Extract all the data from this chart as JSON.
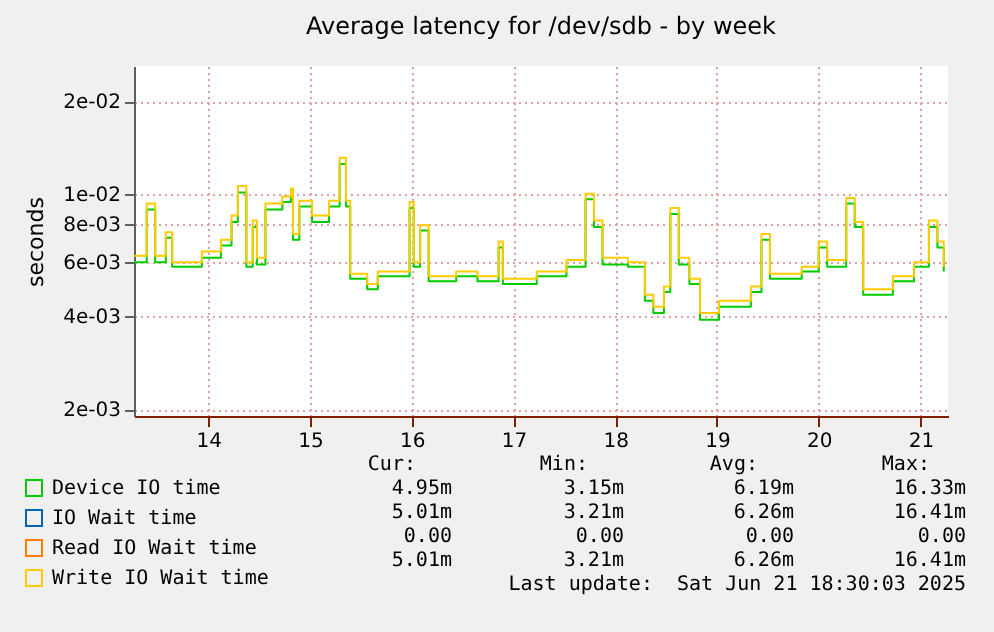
{
  "chart_data": {
    "type": "step",
    "title": "Average latency for /dev/sdb - by week",
    "ylabel": "seconds",
    "x": [
      "2025-06-13T18:30",
      "2025-06-13T21:30",
      "2025-06-13T23:30",
      "2025-06-14T02:00",
      "2025-06-14T03:30",
      "2025-06-14T10:30",
      "2025-06-14T15:00",
      "2025-06-14T17:30",
      "2025-06-14T19:00",
      "2025-06-14T21:00",
      "2025-06-14T22:30",
      "2025-06-14T23:30",
      "2025-06-15T01:30",
      "2025-06-15T05:30",
      "2025-06-15T07:30",
      "2025-06-15T08:00",
      "2025-06-15T09:30",
      "2025-06-15T12:30",
      "2025-06-15T16:30",
      "2025-06-15T19:00",
      "2025-06-15T20:30",
      "2025-06-15T21:30",
      "2025-06-16T01:30",
      "2025-06-16T04:00",
      "2025-06-16T11:30",
      "2025-06-16T12:30",
      "2025-06-16T14:00",
      "2025-06-16T16:00",
      "2025-06-16T22:30",
      "2025-06-17T03:30",
      "2025-06-17T08:30",
      "2025-06-17T09:30",
      "2025-06-17T17:30",
      "2025-06-18T00:30",
      "2025-06-18T05:00",
      "2025-06-18T07:00",
      "2025-06-18T09:00",
      "2025-06-18T15:00",
      "2025-06-18T19:00",
      "2025-06-18T21:00",
      "2025-06-18T23:30",
      "2025-06-19T01:00",
      "2025-06-19T03:00",
      "2025-06-19T05:30",
      "2025-06-19T08:00",
      "2025-06-19T12:30",
      "2025-06-19T20:00",
      "2025-06-19T22:30",
      "2025-06-20T00:30",
      "2025-06-20T08:00",
      "2025-06-20T12:00",
      "2025-06-20T14:00",
      "2025-06-20T18:30",
      "2025-06-20T20:30",
      "2025-06-20T22:30",
      "2025-06-21T05:30",
      "2025-06-21T10:30",
      "2025-06-21T14:00",
      "2025-06-21T16:00",
      "2025-06-21T17:30"
    ],
    "series": [
      {
        "name": "Device IO time",
        "color": "#00cc00",
        "values": [
          0.006,
          0.0089,
          0.006,
          0.0072,
          0.0058,
          0.0062,
          0.0068,
          0.0081,
          0.0101,
          0.0058,
          0.0078,
          0.0059,
          0.0089,
          0.0094,
          0.0099,
          0.0071,
          0.0091,
          0.0081,
          0.0091,
          0.0125,
          0.0091,
          0.0053,
          0.0049,
          0.0054,
          0.009,
          0.0058,
          0.0076,
          0.0052,
          0.0054,
          0.0052,
          0.0067,
          0.0051,
          0.0054,
          0.0058,
          0.0096,
          0.0078,
          0.0059,
          0.0058,
          0.0045,
          0.0041,
          0.0048,
          0.0086,
          0.0059,
          0.0051,
          0.0039,
          0.0043,
          0.0048,
          0.0071,
          0.0053,
          0.0056,
          0.0067,
          0.0058,
          0.0093,
          0.0078,
          0.0047,
          0.0052,
          0.0058,
          0.0078,
          0.0067,
          0.0056
        ]
      },
      {
        "name": "IO Wait time",
        "color": "#0066b3",
        "values": [
          null,
          null,
          null,
          null,
          null,
          null,
          null,
          null,
          null,
          null,
          null,
          null,
          null,
          null,
          null,
          null,
          null,
          null,
          null,
          null,
          null,
          null,
          null,
          null,
          null,
          null,
          null,
          null,
          null,
          null,
          null,
          null,
          null,
          null,
          null,
          null,
          null,
          null,
          null,
          null,
          null,
          null,
          null,
          null,
          null,
          null,
          null,
          null,
          null,
          null,
          null,
          null,
          null,
          null,
          null,
          null,
          null,
          null,
          null,
          null
        ]
      },
      {
        "name": "Read IO Wait time",
        "color": "#ff8000",
        "values": [
          null,
          null,
          null,
          null,
          null,
          null,
          null,
          null,
          null,
          null,
          null,
          null,
          null,
          null,
          null,
          null,
          null,
          null,
          null,
          null,
          null,
          null,
          null,
          null,
          null,
          null,
          null,
          null,
          null,
          null,
          null,
          null,
          null,
          null,
          null,
          null,
          null,
          null,
          null,
          null,
          null,
          null,
          null,
          null,
          null,
          null,
          null,
          null,
          null,
          null,
          null,
          null,
          null,
          null,
          null,
          null,
          null,
          null,
          null,
          null
        ]
      },
      {
        "name": "Write IO Wait time",
        "color": "#ffcc00",
        "values": [
          0.0063,
          0.0093,
          0.0063,
          0.0075,
          0.006,
          0.0065,
          0.0071,
          0.0085,
          0.0106,
          0.006,
          0.0082,
          0.0062,
          0.0093,
          0.0098,
          0.0104,
          0.0074,
          0.0095,
          0.0085,
          0.0095,
          0.0131,
          0.0095,
          0.0055,
          0.0051,
          0.0056,
          0.0094,
          0.006,
          0.0079,
          0.0054,
          0.0056,
          0.0054,
          0.007,
          0.0053,
          0.0056,
          0.0061,
          0.01,
          0.0082,
          0.0062,
          0.006,
          0.0047,
          0.0043,
          0.005,
          0.009,
          0.0062,
          0.0053,
          0.0041,
          0.0045,
          0.005,
          0.0074,
          0.0055,
          0.0058,
          0.007,
          0.0061,
          0.0097,
          0.0081,
          0.0049,
          0.0054,
          0.006,
          0.0082,
          0.007,
          0.0058
        ]
      }
    ],
    "xlim": [
      "2025-06-13T18:30",
      "2025-06-21T18:30"
    ],
    "xticks": [
      {
        "value": "2025-06-14T12:00",
        "label": "14"
      },
      {
        "value": "2025-06-15T12:00",
        "label": "15"
      },
      {
        "value": "2025-06-16T12:00",
        "label": "16"
      },
      {
        "value": "2025-06-17T12:00",
        "label": "17"
      },
      {
        "value": "2025-06-18T12:00",
        "label": "18"
      },
      {
        "value": "2025-06-19T12:00",
        "label": "19"
      },
      {
        "value": "2025-06-20T12:00",
        "label": "20"
      },
      {
        "value": "2025-06-21T12:00",
        "label": "21"
      }
    ],
    "ylim": [
      0.0019,
      0.026
    ],
    "log": true,
    "yticks": [
      {
        "value": 0.002,
        "label": "2e-03"
      },
      {
        "value": 0.004,
        "label": "4e-03"
      },
      {
        "value": 0.006,
        "label": "6e-03"
      },
      {
        "value": 0.008,
        "label": "8e-03"
      },
      {
        "value": 0.01,
        "label": "1e-02"
      },
      {
        "value": 0.02,
        "label": "2e-02"
      }
    ],
    "grid": true,
    "legend": "bottom",
    "annotations": [
      "Cur:",
      "Min:",
      "Avg:",
      "Max:",
      "4.95m",
      "3.15m",
      "6.19m",
      "16.33m",
      "5.01m",
      "3.21m",
      "6.26m",
      "16.41m",
      "0.00",
      "0.00",
      "0.00",
      "0.00",
      "5.01m",
      "3.21m",
      "6.26m",
      "16.41m",
      "Last update:  Sat Jun 21 18:30:03 2025"
    ]
  }
}
